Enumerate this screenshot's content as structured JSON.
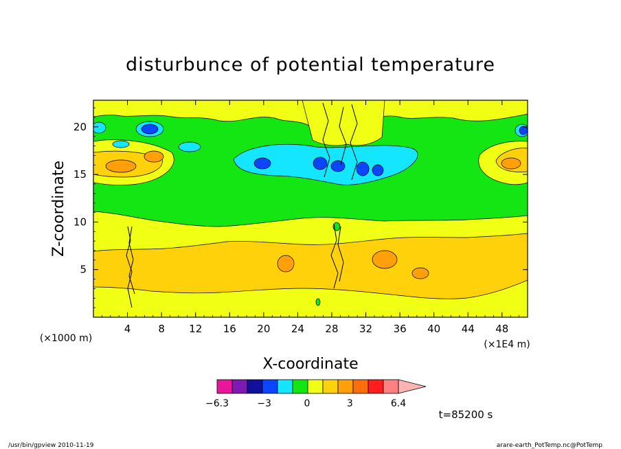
{
  "chart_data": {
    "type": "heatmap",
    "title": "disturbunce of potential temperature",
    "xlabel": "X-coordinate",
    "ylabel": "Z-coordinate",
    "x_unit_note": "(×1E4 m)",
    "y_unit_note": "(×1000 m)",
    "x_ticks": [
      4,
      8,
      12,
      16,
      20,
      24,
      28,
      32,
      36,
      40,
      44,
      48
    ],
    "y_ticks": [
      5,
      10,
      15,
      20
    ],
    "xlim": [
      0,
      51
    ],
    "ylim": [
      0,
      22.8
    ],
    "color_levels": [
      -6.3,
      -3,
      0,
      3,
      6.4
    ],
    "colorbar_labels": [
      "−6.3",
      "−3",
      "0",
      "3",
      "6.4"
    ],
    "colors": [
      "#e8169a",
      "#7d1ab0",
      "#10109a",
      "#0a46ff",
      "#14e6ff",
      "#14e614",
      "#f0ff14",
      "#ffd10a",
      "#ffa00a",
      "#ff6e0a",
      "#ff1e1e",
      "#ff8080",
      "#ffb4b4"
    ],
    "time_label": "t=85200 s",
    "grid": false,
    "legend": "bottom colorbar"
  },
  "footer": {
    "left": "/usr/bin/gpview   2010-11-19",
    "right": "arare-earth_PotTemp.nc@PotTemp"
  }
}
